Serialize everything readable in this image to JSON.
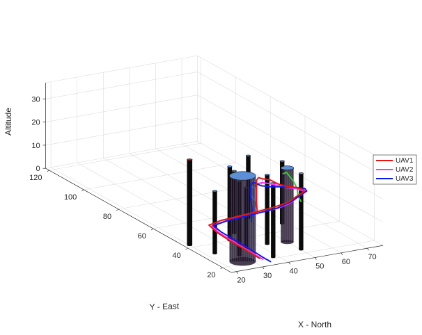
{
  "chart_data": {
    "type": "line",
    "projection": "3d",
    "xlabel": "X - North",
    "ylabel": "Y - East",
    "zlabel": "Altitude",
    "xlim": [
      18,
      76
    ],
    "ylim": [
      15,
      122
    ],
    "zlim": [
      0,
      37
    ],
    "xticks": [
      20,
      30,
      40,
      50,
      60,
      70
    ],
    "yticks": [
      20,
      40,
      60,
      80,
      100,
      120
    ],
    "zticks": [
      0,
      10,
      20,
      30
    ],
    "grid": true,
    "legend": {
      "position": "right",
      "entries": [
        "UAV1",
        "UAV2",
        "UAV3"
      ]
    },
    "colors": {
      "UAV1": "#e8140f",
      "UAV2": "#ff33ff",
      "UAV3": "#0a1ee6",
      "extra_path": "#33cc33",
      "links": "#5588ee",
      "obstacle": "#0a0a0a",
      "obstacle_cap": "#5b8fd6",
      "obstacle_cap_red": "#ee1111"
    },
    "series": [
      {
        "name": "UAV1",
        "points": [
          [
            33.5,
            22,
            0
          ],
          [
            33.8,
            30,
            0
          ],
          [
            34,
            40,
            0
          ],
          [
            34.5,
            48,
            0
          ],
          [
            36,
            55,
            0
          ],
          [
            42,
            57,
            0
          ],
          [
            50,
            58,
            0
          ],
          [
            58,
            59,
            0
          ],
          [
            64,
            60,
            0
          ],
          [
            68,
            58,
            2
          ],
          [
            70,
            55,
            6
          ],
          [
            69,
            50,
            10
          ],
          [
            65,
            44,
            14
          ],
          [
            58,
            38,
            19
          ],
          [
            51,
            33,
            23
          ],
          [
            45,
            29,
            27
          ],
          [
            40,
            26,
            31
          ],
          [
            36,
            24,
            33
          ],
          [
            33,
            22,
            35
          ],
          [
            31,
            20,
            35
          ],
          [
            29,
            17,
            33
          ],
          [
            27,
            14,
            29
          ],
          [
            26,
            12,
            25
          ]
        ]
      },
      {
        "name": "UAV2",
        "points": [
          [
            34,
            21,
            0
          ],
          [
            34.3,
            30,
            0
          ],
          [
            34.6,
            40,
            0
          ],
          [
            35,
            48,
            0
          ],
          [
            36.5,
            54,
            0
          ],
          [
            43,
            56,
            0
          ],
          [
            51,
            57,
            0
          ],
          [
            59,
            58,
            0
          ],
          [
            64.5,
            58.5,
            0
          ],
          [
            68,
            57,
            2
          ],
          [
            69.5,
            54,
            6
          ],
          [
            68.5,
            49,
            10
          ],
          [
            64.5,
            43,
            14
          ],
          [
            57.5,
            37,
            19
          ],
          [
            50.5,
            32,
            23
          ],
          [
            44,
            28,
            27
          ],
          [
            39,
            25,
            30
          ],
          [
            35,
            23,
            32
          ],
          [
            32,
            21,
            33
          ],
          [
            30,
            19,
            32
          ],
          [
            28,
            16,
            30
          ],
          [
            26.5,
            13,
            27
          ]
        ]
      },
      {
        "name": "UAV3",
        "points": [
          [
            35,
            18,
            0
          ],
          [
            35,
            22,
            0
          ],
          [
            35.5,
            30,
            0
          ],
          [
            35.8,
            40,
            0
          ],
          [
            36,
            48,
            0
          ],
          [
            37,
            54,
            0
          ],
          [
            44,
            56,
            0
          ],
          [
            52,
            57,
            0
          ],
          [
            60,
            58,
            0
          ],
          [
            65,
            59,
            0
          ],
          [
            69,
            58,
            2
          ],
          [
            71,
            55,
            6
          ],
          [
            70,
            50,
            10
          ],
          [
            66,
            45,
            14
          ],
          [
            59,
            40,
            18
          ],
          [
            51,
            35,
            22
          ],
          [
            44,
            31,
            25
          ],
          [
            38,
            28,
            28
          ],
          [
            34,
            26,
            31
          ],
          [
            32,
            24,
            32
          ],
          [
            30,
            22,
            32
          ],
          [
            28,
            19,
            30
          ],
          [
            26,
            15,
            25
          ],
          [
            25,
            14,
            21
          ]
        ]
      },
      {
        "points": [
          [
            59,
            47,
            21
          ],
          [
            63,
            51,
            19
          ],
          [
            68,
            55,
            13
          ],
          [
            71,
            57,
            8
          ],
          [
            72,
            58,
            4
          ],
          [
            72.5,
            57,
            2
          ]
        ]
      }
    ],
    "obstacles": [
      {
        "x": 20,
        "y": 42,
        "r": 0.9,
        "h": 37,
        "cap": "red"
      },
      {
        "x": 23,
        "y": 32,
        "r": 0.6,
        "h": 27
      },
      {
        "x": 27,
        "y": 22,
        "r": 4.5,
        "h": 37
      },
      {
        "x": 29,
        "y": 27,
        "r": 0.6,
        "h": 32
      },
      {
        "x": 34,
        "y": 40,
        "r": 0.6,
        "h": 32
      },
      {
        "x": 35,
        "y": 32,
        "r": 0.6,
        "h": 26
      },
      {
        "x": 38,
        "y": 21,
        "r": 0.6,
        "h": 32
      },
      {
        "x": 39,
        "y": 45,
        "r": 0.6,
        "h": 27
      },
      {
        "x": 43,
        "y": 32,
        "r": 0.6,
        "h": 30
      },
      {
        "x": 50,
        "y": 23,
        "r": 0.6,
        "h": 33
      },
      {
        "x": 51,
        "y": 55,
        "r": 0.6,
        "h": 27
      },
      {
        "x": 50,
        "y": 31,
        "r": 2.2,
        "h": 32
      },
      {
        "x": 58,
        "y": 46,
        "r": 0.6,
        "h": 27
      }
    ]
  }
}
